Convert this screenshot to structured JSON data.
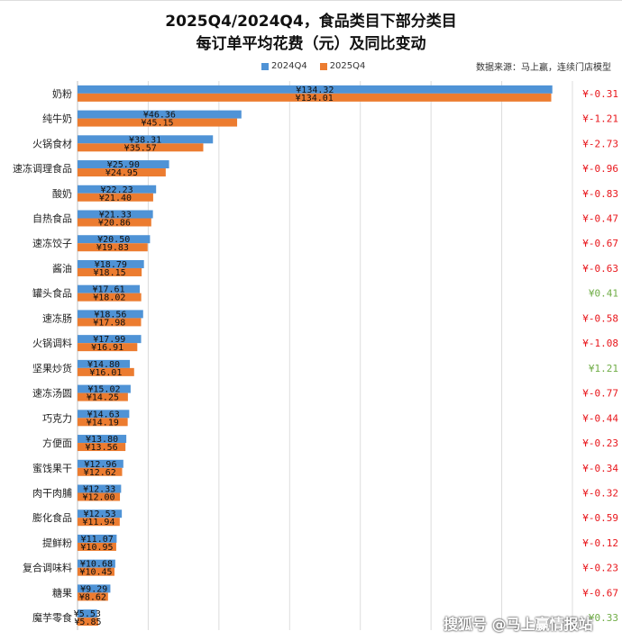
{
  "titles": {
    "line1": "2025Q4/2024Q4，食品类目下部分类目",
    "line2": "每订单平均花费（元）及同比变动",
    "source": "数据来源：马上赢，连续门店模型"
  },
  "watermark": "搜狐号 @马上赢情报站",
  "colors": {
    "series_2024": "#4f93d6",
    "series_2025": "#ec7c30",
    "negative": "#e8161b",
    "positive": "#70ad47"
  },
  "chart_data": {
    "type": "bar",
    "orientation": "horizontal",
    "categories": [
      "奶粉",
      "纯牛奶",
      "火锅食材",
      "速冻调理食品",
      "酸奶",
      "自热食品",
      "速冻饺子",
      "酱油",
      "罐头食品",
      "速冻肠",
      "火锅调料",
      "坚果炒货",
      "速冻汤圆",
      "巧克力",
      "方便面",
      "蜜饯果干",
      "肉干肉脯",
      "膨化食品",
      "提鲜粉",
      "复合调味料",
      "糖果",
      "魔芋零食"
    ],
    "series": [
      {
        "name": "2024Q4",
        "values": [
          134.32,
          46.36,
          38.31,
          25.9,
          22.23,
          21.33,
          20.5,
          18.79,
          17.61,
          18.56,
          17.99,
          14.8,
          15.02,
          14.63,
          13.8,
          12.96,
          12.33,
          12.53,
          11.07,
          10.68,
          9.29,
          5.53
        ],
        "labels": [
          "¥134.32",
          "¥46.36",
          "¥38.31",
          "¥25.90",
          "¥22.23",
          "¥21.33",
          "¥20.50",
          "¥18.79",
          "¥17.61",
          "¥18.56",
          "¥17.99",
          "¥14.80",
          "¥15.02",
          "¥14.63",
          "¥13.80",
          "¥12.96",
          "¥12.33",
          "¥12.53",
          "¥11.07",
          "¥10.68",
          "¥9.29",
          "¥5.53"
        ]
      },
      {
        "name": "2025Q4",
        "values": [
          134.01,
          45.15,
          35.57,
          24.95,
          21.4,
          20.86,
          19.83,
          18.15,
          18.02,
          17.98,
          16.91,
          16.01,
          14.25,
          14.19,
          13.56,
          12.62,
          12.0,
          11.94,
          10.95,
          10.45,
          8.62,
          5.85
        ],
        "labels": [
          "¥134.01",
          "¥45.15",
          "¥35.57",
          "¥24.95",
          "¥21.40",
          "¥20.86",
          "¥19.83",
          "¥18.15",
          "¥18.02",
          "¥17.98",
          "¥16.91",
          "¥16.01",
          "¥14.25",
          "¥14.19",
          "¥13.56",
          "¥12.62",
          "¥12.00",
          "¥11.94",
          "¥10.95",
          "¥10.45",
          "¥8.62",
          "¥5.85"
        ]
      }
    ],
    "changes": [
      "¥-0.31",
      "¥-1.21",
      "¥-2.73",
      "¥-0.96",
      "¥-0.83",
      "¥-0.47",
      "¥-0.67",
      "¥-0.63",
      "¥0.41",
      "¥-0.58",
      "¥-1.08",
      "¥1.21",
      "¥-0.77",
      "¥-0.44",
      "¥-0.23",
      "¥-0.34",
      "¥-0.32",
      "¥-0.59",
      "¥-0.12",
      "¥-0.23",
      "¥-0.67",
      "¥0.33"
    ],
    "xlim": [
      0,
      140
    ],
    "grid": true,
    "legend": "top"
  }
}
